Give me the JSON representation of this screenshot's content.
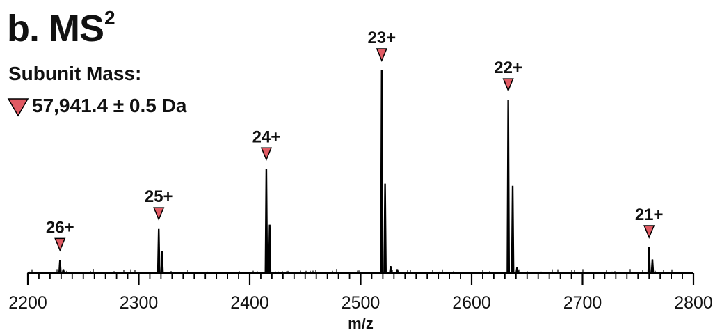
{
  "panel": {
    "letter": "b.",
    "title": "MS",
    "superscript": "2"
  },
  "annotation": {
    "title": "Subunit Mass:",
    "value": "57,941.4 ± 0.5 Da",
    "marker_color": "#e05a63"
  },
  "colors": {
    "spectrum": "#000000",
    "marker": "#e05a63",
    "marker_stroke": "#000000"
  },
  "chart_data": {
    "type": "line",
    "xlabel": "m/z",
    "ylabel": "",
    "xlim": [
      2200,
      2800
    ],
    "ylim": [
      0,
      100
    ],
    "grid": false,
    "x_ticks": [
      2200,
      2300,
      2400,
      2500,
      2600,
      2700,
      2800
    ],
    "minor_tick_step": 10,
    "peaks": [
      {
        "label": "26+",
        "x": 2229,
        "y": 6.4
      },
      {
        "x": 2232,
        "y": 1.8
      },
      {
        "label": "25+",
        "x": 2318,
        "y": 21.6
      },
      {
        "x": 2321,
        "y": 10.5
      },
      {
        "label": "24+",
        "x": 2415,
        "y": 51.1
      },
      {
        "x": 2418,
        "y": 23.7
      },
      {
        "label": "23+",
        "x": 2519,
        "y": 100
      },
      {
        "x": 2522,
        "y": 44.0
      },
      {
        "x": 2527,
        "y": 3.3
      },
      {
        "x": 2533,
        "y": 1.8
      },
      {
        "label": "22+",
        "x": 2633,
        "y": 85.2
      },
      {
        "x": 2637,
        "y": 42.9
      },
      {
        "x": 2641,
        "y": 2.9
      },
      {
        "label": "21+",
        "x": 2760,
        "y": 12.7
      },
      {
        "x": 2763,
        "y": 6.6
      }
    ]
  }
}
